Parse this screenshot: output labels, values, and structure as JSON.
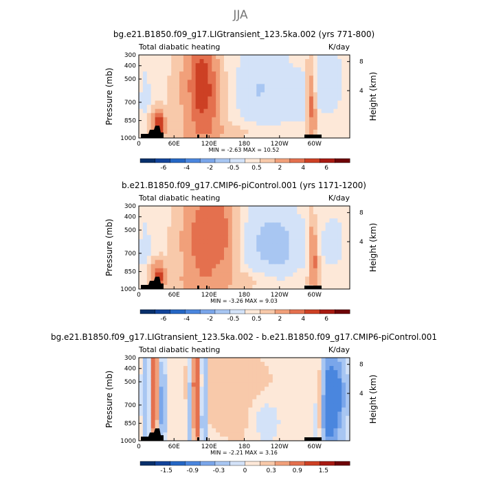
{
  "title": "JJA",
  "palette": [
    "#08306b",
    "#12439a",
    "#2566c4",
    "#4a86de",
    "#7aa6ea",
    "#a8c6f2",
    "#d3e2f8",
    "#fde8d8",
    "#f8c9aa",
    "#f1a07a",
    "#e4704e",
    "#cd4024",
    "#a81a12",
    "#6e0208"
  ],
  "chart_data": [
    {
      "type": "heatmap",
      "title": "bg.e21.B1850.f09_g17.LIGtransient_123.5ka.002 (yrs 771-800)",
      "left_label": "Total diabatic heating",
      "units": "K/day",
      "ylabel": "Pressure (mb)",
      "ylabel_right": "Height (km)",
      "y_ticks": [
        "300",
        "400",
        "500",
        "700",
        "850",
        "1000"
      ],
      "y_ticks_right": [
        "8",
        "4"
      ],
      "x_ticks": [
        "0",
        "60E",
        "120E",
        "180",
        "120W",
        "60W"
      ],
      "stats_text": "MIN =   -2.63   MAX =   10.52",
      "colorbar_levels": [
        -6,
        -4,
        -2,
        -0.5,
        0.5,
        2,
        4,
        6
      ],
      "colorbar_labels": [
        "-6",
        "-4",
        "-2",
        "-0.5",
        "0.5",
        "2",
        "4",
        "6"
      ]
    },
    {
      "type": "heatmap",
      "title": "b.e21.B1850.f09_g17.CMIP6-piControl.001 (yrs 1171-1200)",
      "left_label": "Total diabatic heating",
      "units": "K/day",
      "ylabel": "Pressure (mb)",
      "ylabel_right": "Height (km)",
      "y_ticks": [
        "300",
        "400",
        "500",
        "700",
        "850",
        "1000"
      ],
      "y_ticks_right": [
        "8",
        "4"
      ],
      "x_ticks": [
        "0",
        "60E",
        "120E",
        "180",
        "120W",
        "60W"
      ],
      "stats_text": "MIN =   -3.26   MAX =    9.03",
      "colorbar_levels": [
        -6,
        -4,
        -2,
        -0.5,
        0.5,
        2,
        4,
        6
      ],
      "colorbar_labels": [
        "-6",
        "-4",
        "-2",
        "-0.5",
        "0.5",
        "2",
        "4",
        "6"
      ]
    },
    {
      "type": "heatmap",
      "title": "bg.e21.B1850.f09_g17.LIGtransient_123.5ka.002 - b.e21.B1850.f09_g17.CMIP6-piControl.001",
      "left_label": "Total diabatic heating",
      "units": "K/day",
      "ylabel": "Pressure (mb)",
      "ylabel_right": "Height (km)",
      "y_ticks": [
        "300",
        "400",
        "500",
        "700",
        "850",
        "1000"
      ],
      "y_ticks_right": [
        "8",
        "4"
      ],
      "x_ticks": [
        "0",
        "60E",
        "120E",
        "180",
        "120W",
        "60W"
      ],
      "stats_text": "MIN =   -2.21   MAX =    3.16",
      "colorbar_levels": [
        -1.5,
        -0.9,
        -0.3,
        0,
        0.3,
        0.9,
        1.5
      ],
      "colorbar_labels": [
        "-1.5",
        "-0.9",
        "-0.3",
        "0",
        "0.3",
        "0.9",
        "1.5"
      ]
    }
  ]
}
